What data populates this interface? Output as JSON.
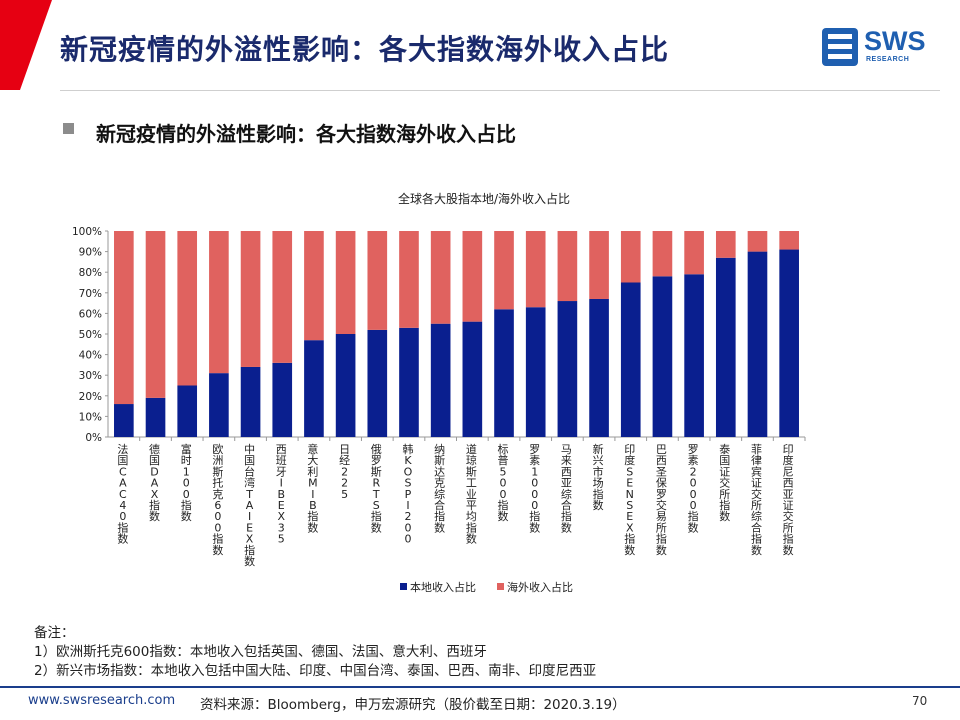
{
  "header": {
    "title": "新冠疫情的外溢性影响：各大指数海外收入占比",
    "logo_text": "SWS",
    "logo_sub": "RESEARCH"
  },
  "subtitle": "新冠疫情的外溢性影响：各大指数海外收入占比",
  "chart_data": {
    "type": "bar",
    "stacked": true,
    "title": "全球各大股指本地/海外收入占比",
    "categories": [
      "法国CAC40指数",
      "德国DAX指数",
      "富时100指数",
      "欧洲斯托克600指数",
      "中国台湾TAIEX指数",
      "西班牙IBEX35",
      "意大利MIB指数",
      "日经225",
      "俄罗斯RTS指数",
      "韩KOSPI200",
      "纳斯达克综合指数",
      "道琼斯工业平均指数",
      "标普500指数",
      "罗素1000指数",
      "马来西亚综合指数",
      "新兴市场指数",
      "印度SENSEX指数",
      "巴西圣保罗交易所指数",
      "罗素2000指数",
      "泰国证交所指数",
      "菲律宾证交所综合指数",
      "印度尼西亚证交所指数"
    ],
    "series": [
      {
        "name": "本地收入占比",
        "color": "#0a1f8f",
        "values": [
          16,
          19,
          25,
          31,
          34,
          36,
          47,
          50,
          52,
          53,
          55,
          56,
          62,
          63,
          66,
          67,
          75,
          78,
          79,
          87,
          90,
          91
        ]
      },
      {
        "name": "海外收入占比",
        "color": "#e0625f",
        "values": [
          84,
          81,
          75,
          69,
          66,
          64,
          53,
          50,
          48,
          47,
          45,
          44,
          38,
          37,
          34,
          33,
          25,
          22,
          21,
          13,
          10,
          9
        ]
      }
    ],
    "ylim": [
      0,
      100
    ],
    "yticks": [
      "0%",
      "10%",
      "20%",
      "30%",
      "40%",
      "50%",
      "60%",
      "70%",
      "80%",
      "90%",
      "100%"
    ],
    "legend_position": "bottom",
    "grid": false
  },
  "notes": {
    "heading": "备注：",
    "line1": "1）欧洲斯托克600指数：本地收入包括英国、德国、法国、意大利、西班牙",
    "line2": "2）新兴市场指数：本地收入包括中国大陆、印度、中国台湾、泰国、巴西、南非、印度尼西亚"
  },
  "footer": {
    "url": "www.swsresearch.com",
    "source": "资料来源：Bloomberg，申万宏源研究（股价截至日期：2020.3.19）",
    "page": "70"
  },
  "colors": {
    "accent_red": "#e60012",
    "brand_blue": "#1a3e8c"
  }
}
